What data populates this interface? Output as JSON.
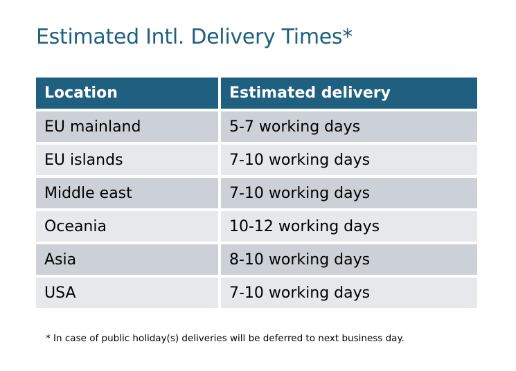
{
  "title": "Estimated Intl. Delivery Times*",
  "table": {
    "headers": [
      "Location",
      "Estimated delivery"
    ],
    "rows": [
      [
        "EU mainland",
        "5-7 working days"
      ],
      [
        "EU islands",
        "7-10 working days"
      ],
      [
        "Middle east",
        "7-10 working days"
      ],
      [
        "Oceania",
        "10-12 working days"
      ],
      [
        "Asia",
        "8-10 working days"
      ],
      [
        "USA",
        "7-10 working days"
      ]
    ]
  },
  "footnote": "* In case of public holiday(s) deliveries will be deferred to next business day.",
  "colors": {
    "accent": "#1f6080",
    "row_odd": "#ccd1d8",
    "row_even": "#e6e8eb"
  }
}
